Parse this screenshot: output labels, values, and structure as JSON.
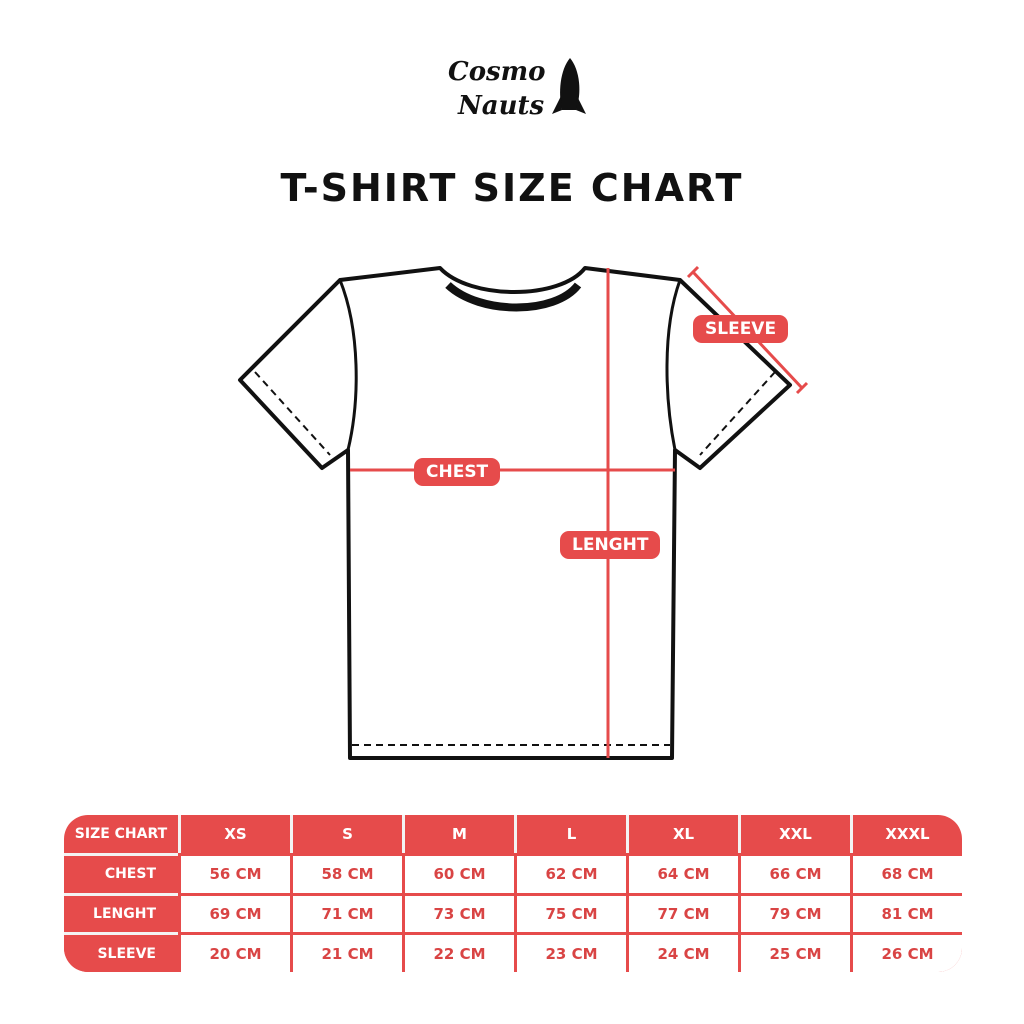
{
  "logo": {
    "text": "Cosmo Nauts",
    "icon": "rocket-icon"
  },
  "title": "T-SHIRT SIZE CHART",
  "labels": {
    "sleeve": "SLEEVE",
    "chest": "CHEST",
    "length": "LENGHT"
  },
  "colors": {
    "accent": "#e64b4b",
    "outline": "#111111"
  },
  "chart_data": {
    "type": "table",
    "header": [
      "SIZE CHART",
      "XS",
      "S",
      "M",
      "L",
      "XL",
      "XXL",
      "XXXL"
    ],
    "rows": [
      {
        "label": "CHEST",
        "values": [
          "56 CM",
          "58 CM",
          "60 CM",
          "62 CM",
          "64 CM",
          "66 CM",
          "68 CM"
        ]
      },
      {
        "label": "LENGHT",
        "values": [
          "69 CM",
          "71 CM",
          "73 CM",
          "75 CM",
          "77 CM",
          "79 CM",
          "81 CM"
        ]
      },
      {
        "label": "SLEEVE",
        "values": [
          "20 CM",
          "21 CM",
          "22 CM",
          "23 CM",
          "24 CM",
          "25 CM",
          "26 CM"
        ]
      }
    ]
  }
}
